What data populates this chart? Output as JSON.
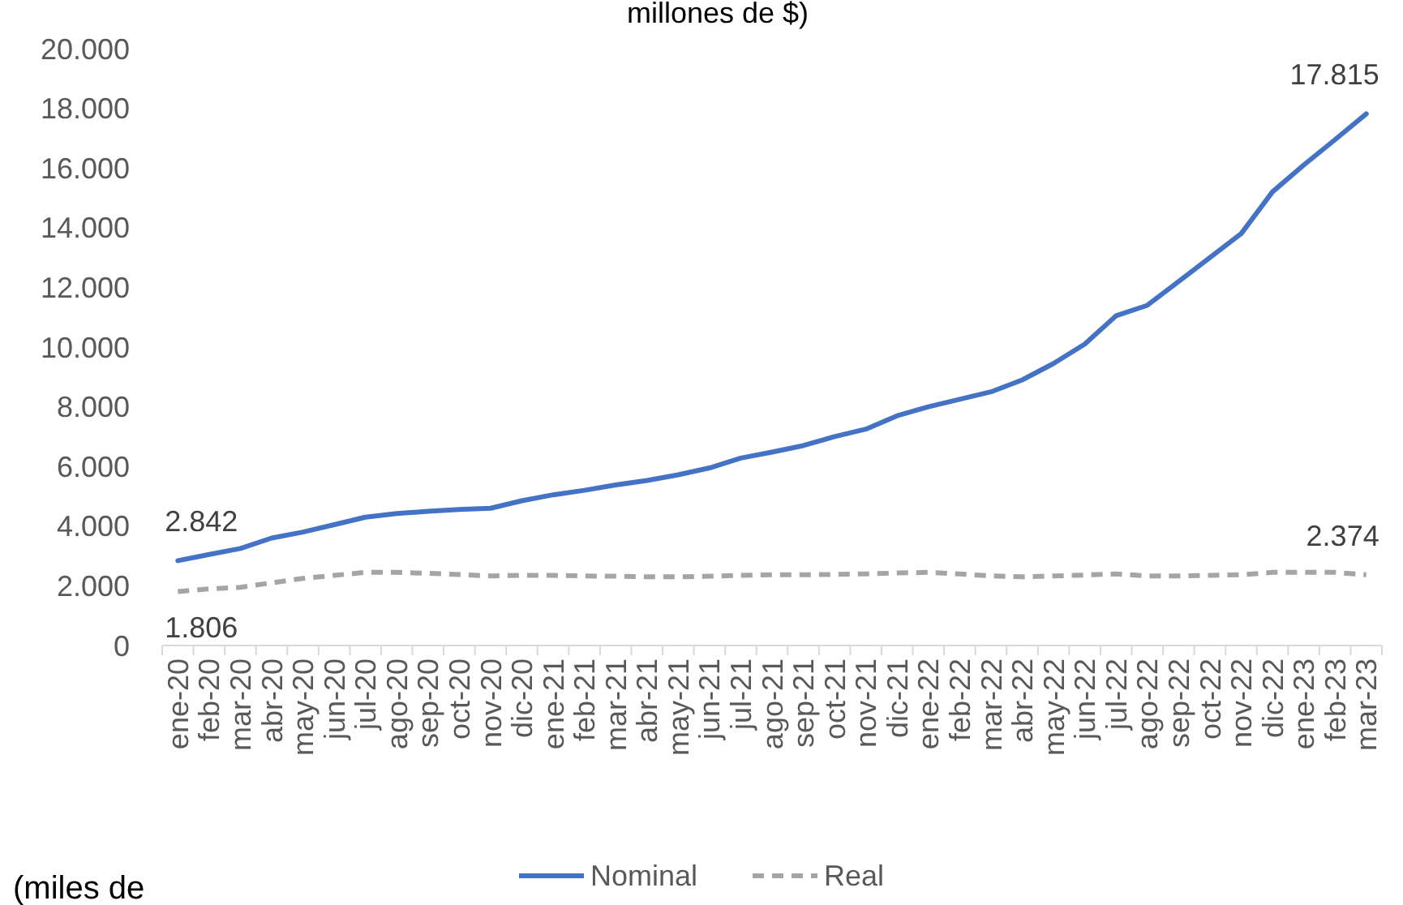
{
  "chart_data": {
    "type": "line",
    "title": "millones de $)",
    "categories": [
      "ene-20",
      "feb-20",
      "mar-20",
      "abr-20",
      "may-20",
      "jun-20",
      "jul-20",
      "ago-20",
      "sep-20",
      "oct-20",
      "nov-20",
      "dic-20",
      "ene-21",
      "feb-21",
      "mar-21",
      "abr-21",
      "may-21",
      "jun-21",
      "jul-21",
      "ago-21",
      "sep-21",
      "oct-21",
      "nov-21",
      "dic-21",
      "ene-22",
      "feb-22",
      "mar-22",
      "abr-22",
      "may-22",
      "jun-22",
      "jul-22",
      "ago-22",
      "sep-22",
      "oct-22",
      "nov-22",
      "dic-22",
      "ene-23",
      "feb-23",
      "mar-23"
    ],
    "series": [
      {
        "name": "Nominal",
        "color": "#4472c4",
        "line_style": "solid",
        "values": [
          2842,
          3050,
          3250,
          3600,
          3800,
          4050,
          4300,
          4420,
          4500,
          4560,
          4600,
          4850,
          5050,
          5200,
          5380,
          5530,
          5720,
          5950,
          6280,
          6480,
          6700,
          7000,
          7250,
          7700,
          8000,
          8250,
          8500,
          8900,
          9450,
          10100,
          11050,
          11400,
          12200,
          13000,
          13800,
          15200,
          16100,
          16950,
          17815
        ],
        "value_labels": [
          "2.842",
          null,
          null,
          null,
          null,
          null,
          null,
          null,
          null,
          null,
          null,
          null,
          null,
          null,
          null,
          null,
          null,
          null,
          null,
          null,
          null,
          null,
          null,
          null,
          null,
          null,
          null,
          null,
          null,
          null,
          null,
          null,
          null,
          null,
          null,
          null,
          null,
          null,
          "17.815"
        ]
      },
      {
        "name": "Real",
        "color": "#a5a5a5",
        "line_style": "dashed",
        "values": [
          1806,
          1900,
          1950,
          2100,
          2250,
          2350,
          2450,
          2450,
          2420,
          2380,
          2330,
          2350,
          2350,
          2330,
          2320,
          2300,
          2300,
          2320,
          2350,
          2370,
          2370,
          2380,
          2400,
          2430,
          2450,
          2400,
          2330,
          2300,
          2330,
          2360,
          2400,
          2330,
          2330,
          2350,
          2370,
          2450,
          2450,
          2450,
          2374
        ],
        "value_labels": [
          "1.806",
          null,
          null,
          null,
          null,
          null,
          null,
          null,
          null,
          null,
          null,
          null,
          null,
          null,
          null,
          null,
          null,
          null,
          null,
          null,
          null,
          null,
          null,
          null,
          null,
          null,
          null,
          null,
          null,
          null,
          null,
          null,
          null,
          null,
          null,
          null,
          null,
          null,
          "2.374"
        ]
      }
    ],
    "ylim": [
      0,
      20000
    ],
    "yticks": [
      {
        "value": 0,
        "label": "0"
      },
      {
        "value": 2000,
        "label": "2.000"
      },
      {
        "value": 4000,
        "label": "4.000"
      },
      {
        "value": 6000,
        "label": "6.000"
      },
      {
        "value": 8000,
        "label": "8.000"
      },
      {
        "value": 10000,
        "label": "10.000"
      },
      {
        "value": 12000,
        "label": "12.000"
      },
      {
        "value": 14000,
        "label": "14.000"
      },
      {
        "value": 16000,
        "label": "16.000"
      },
      {
        "value": 18000,
        "label": "18.000"
      },
      {
        "value": 20000,
        "label": "20.000"
      }
    ],
    "grid": false,
    "legend": "bottom",
    "marker": "none",
    "annotations": [
      "(miles de"
    ]
  }
}
